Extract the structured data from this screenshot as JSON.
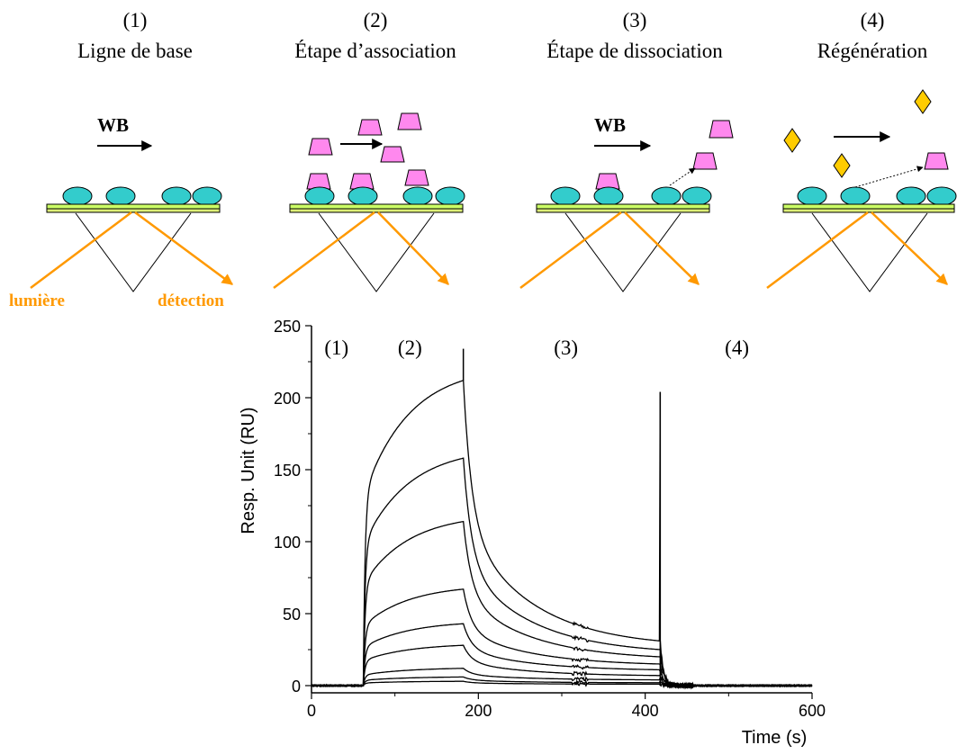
{
  "steps": [
    {
      "number": "(1)",
      "title": "Ligne de base",
      "flow": "WB"
    },
    {
      "number": "(2)",
      "title": "Étape d’association",
      "flow": ""
    },
    {
      "number": "(3)",
      "title": "Étape de dissociation",
      "flow": "WB"
    },
    {
      "number": "(4)",
      "title": "Régénération",
      "flow": ""
    }
  ],
  "optics": {
    "light_label": "lumière",
    "detection_label": "détection"
  },
  "colors": {
    "ligand": "#33cccc",
    "analyte": "#ff88ee",
    "regenerant": "#ffcc00",
    "light": "#ff9900",
    "surface_top": "#ccff66",
    "surface_bottom": "#ddee77"
  },
  "chart_data": {
    "type": "line",
    "title": "",
    "xlabel": "Time (s)",
    "ylabel": "Resp. Unit (RU)",
    "xlim": [
      0,
      600
    ],
    "ylim": [
      -5,
      250
    ],
    "xticks": [
      0,
      200,
      400,
      600
    ],
    "yticks": [
      0,
      50,
      100,
      150,
      200,
      250
    ],
    "phase_labels": [
      {
        "label": "(1)",
        "x": 30
      },
      {
        "label": "(2)",
        "x": 118
      },
      {
        "label": "(3)",
        "x": 305
      },
      {
        "label": "(4)",
        "x": 510
      }
    ],
    "injection_start": 62,
    "injection_end": 182,
    "regeneration_time": 418,
    "regeneration_spike": 204,
    "injection_end_spike": 234,
    "series": [
      {
        "values": [
          212,
          31
        ]
      },
      {
        "values": [
          158,
          25
        ]
      },
      {
        "values": [
          114,
          20
        ]
      },
      {
        "values": [
          67,
          15
        ]
      },
      {
        "values": [
          43,
          11
        ]
      },
      {
        "values": [
          28,
          7
        ]
      },
      {
        "values": [
          12,
          4
        ]
      },
      {
        "values": [
          6,
          2
        ]
      },
      {
        "values": [
          3,
          1
        ]
      }
    ]
  }
}
